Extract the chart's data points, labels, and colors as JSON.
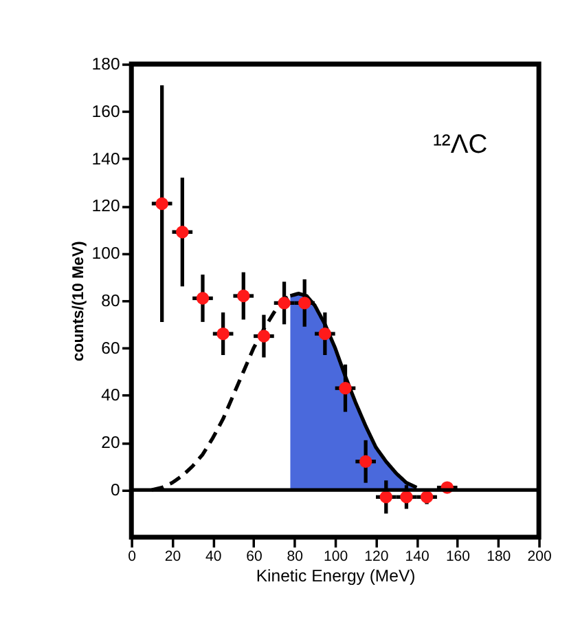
{
  "chart_data": {
    "type": "scatter",
    "xlabel": "Kinetic Energy (MeV)",
    "ylabel": "counts/(10 MeV)",
    "annotations": [
      "¹²ΛC"
    ],
    "xlim": [
      0,
      200
    ],
    "ylim": [
      -20,
      180
    ],
    "xticks": [
      0,
      20,
      40,
      60,
      80,
      100,
      120,
      140,
      160,
      180,
      200
    ],
    "yticks": [
      0,
      20,
      40,
      60,
      80,
      100,
      120,
      140,
      160,
      180
    ],
    "grid": false,
    "ref_lines": [
      {
        "axis": "y",
        "value": 0,
        "color": "#000000"
      }
    ],
    "series": [
      {
        "type": "area",
        "color": "#2a4fd6",
        "line_style": "solid",
        "x": [
          78,
          82,
          86,
          90,
          95,
          100,
          105,
          110,
          115,
          120,
          125,
          130,
          135,
          140
        ],
        "values": [
          82,
          83,
          82,
          78,
          70,
          60,
          48,
          37,
          27,
          18,
          12,
          7,
          3,
          1
        ]
      },
      {
        "type": "line",
        "color": "#000000",
        "line_style": "dashed",
        "x": [
          10,
          15,
          20,
          25,
          30,
          35,
          40,
          45,
          50,
          55,
          60,
          65,
          70,
          74,
          78
        ],
        "values": [
          0,
          1,
          3,
          6,
          10,
          15,
          22,
          30,
          40,
          50,
          60,
          68,
          75,
          80,
          82
        ]
      },
      {
        "color": "#ff1a1a",
        "marker": "circle",
        "x": [
          15,
          25,
          35,
          45,
          55,
          65,
          75,
          85,
          95,
          105,
          115,
          125,
          135,
          145,
          155
        ],
        "values": [
          121,
          109,
          81,
          66,
          82,
          65,
          79,
          79,
          66,
          43,
          12,
          -3,
          -3,
          -3,
          1
        ],
        "errors": [
          50,
          23,
          10,
          9,
          10,
          9,
          9,
          10,
          9,
          10,
          9,
          7,
          5,
          3,
          1
        ],
        "xerrors": [
          5,
          5,
          5,
          5,
          5,
          5,
          5,
          5,
          5,
          5,
          5,
          5,
          5,
          5,
          5
        ]
      }
    ]
  }
}
